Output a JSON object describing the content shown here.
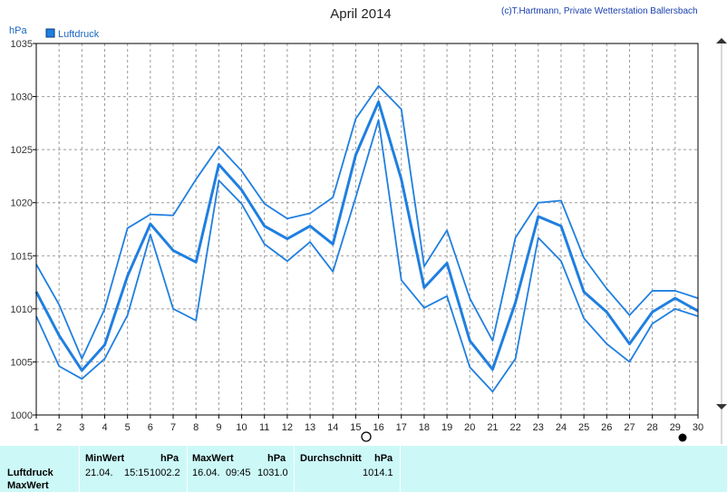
{
  "header": {
    "title": "April 2014",
    "credit": "(c)T.Hartmann, Private Wetterstation Ballersbach",
    "unit": "hPa",
    "legend_label": "Luftdruck"
  },
  "colors": {
    "series": "#1f7fe0",
    "legend_box": "#1f7fe0",
    "panel_bg": "#ccf9f8"
  },
  "chart_data": {
    "type": "line",
    "title": "April 2014",
    "ylabel": "hPa",
    "xlabel": "",
    "ylim": [
      1000,
      1035
    ],
    "xlim": [
      1,
      30
    ],
    "grid": true,
    "legend": "top-left",
    "x": [
      1,
      2,
      3,
      4,
      5,
      6,
      7,
      8,
      9,
      10,
      11,
      12,
      13,
      14,
      15,
      16,
      17,
      18,
      19,
      20,
      21,
      22,
      23,
      24,
      25,
      26,
      27,
      28,
      29,
      30
    ],
    "yticks": [
      "1000",
      "1005",
      "1010",
      "1015",
      "1020",
      "1025",
      "1030",
      "1035"
    ],
    "xticks": [
      "1",
      "2",
      "3",
      "4",
      "5",
      "6",
      "7",
      "8",
      "9",
      "10",
      "11",
      "12",
      "13",
      "14",
      "15",
      "16",
      "17",
      "18",
      "19",
      "20",
      "21",
      "22",
      "23",
      "24",
      "25",
      "26",
      "27",
      "28",
      "29",
      "30"
    ],
    "series": [
      {
        "name": "Luftdruck",
        "role": "max",
        "values": [
          1014.2,
          1010.4,
          1005.3,
          1010.0,
          1017.6,
          1018.9,
          1018.8,
          1022.2,
          1025.3,
          1023.0,
          1019.9,
          1018.5,
          1019.0,
          1020.5,
          1027.9,
          1031.0,
          1028.8,
          1014.0,
          1017.4,
          1011.0,
          1007.0,
          1016.7,
          1020.0,
          1020.2,
          1014.8,
          1011.9,
          1009.4,
          1011.7,
          1011.7,
          1011.0
        ]
      },
      {
        "name": "Luftdruck",
        "role": "mean",
        "values": [
          1011.6,
          1007.5,
          1004.2,
          1006.6,
          1013.1,
          1018.0,
          1015.5,
          1014.4,
          1023.6,
          1021.2,
          1017.8,
          1016.6,
          1017.8,
          1016.1,
          1024.5,
          1029.5,
          1022.2,
          1012.0,
          1014.3,
          1007.0,
          1004.3,
          1010.6,
          1018.7,
          1017.8,
          1011.6,
          1009.7,
          1006.7,
          1009.7,
          1011.0,
          1009.8
        ]
      },
      {
        "name": "Luftdruck",
        "role": "min",
        "values": [
          1009.3,
          1004.6,
          1003.4,
          1005.3,
          1009.4,
          1017.0,
          1010.0,
          1008.9,
          1022.1,
          1019.9,
          1016.1,
          1014.5,
          1016.3,
          1013.5,
          1020.5,
          1027.8,
          1012.7,
          1010.1,
          1011.2,
          1004.5,
          1002.2,
          1005.3,
          1016.7,
          1014.5,
          1009.1,
          1006.7,
          1005.0,
          1008.6,
          1010.0,
          1009.3
        ]
      }
    ]
  },
  "stats_panel": {
    "row_labels": [
      "Luftdruck",
      "MaxWert"
    ],
    "min": {
      "header": "MinWert",
      "unit": "hPa",
      "date": "21.04.",
      "time": "15:15",
      "value": "1002.2"
    },
    "max": {
      "header": "MaxWert",
      "unit": "hPa",
      "date": "16.04.",
      "time": "09:45",
      "value": "1031.0"
    },
    "avg": {
      "header": "Durchschnitt",
      "unit": "hPa",
      "value": "1014.1"
    }
  }
}
